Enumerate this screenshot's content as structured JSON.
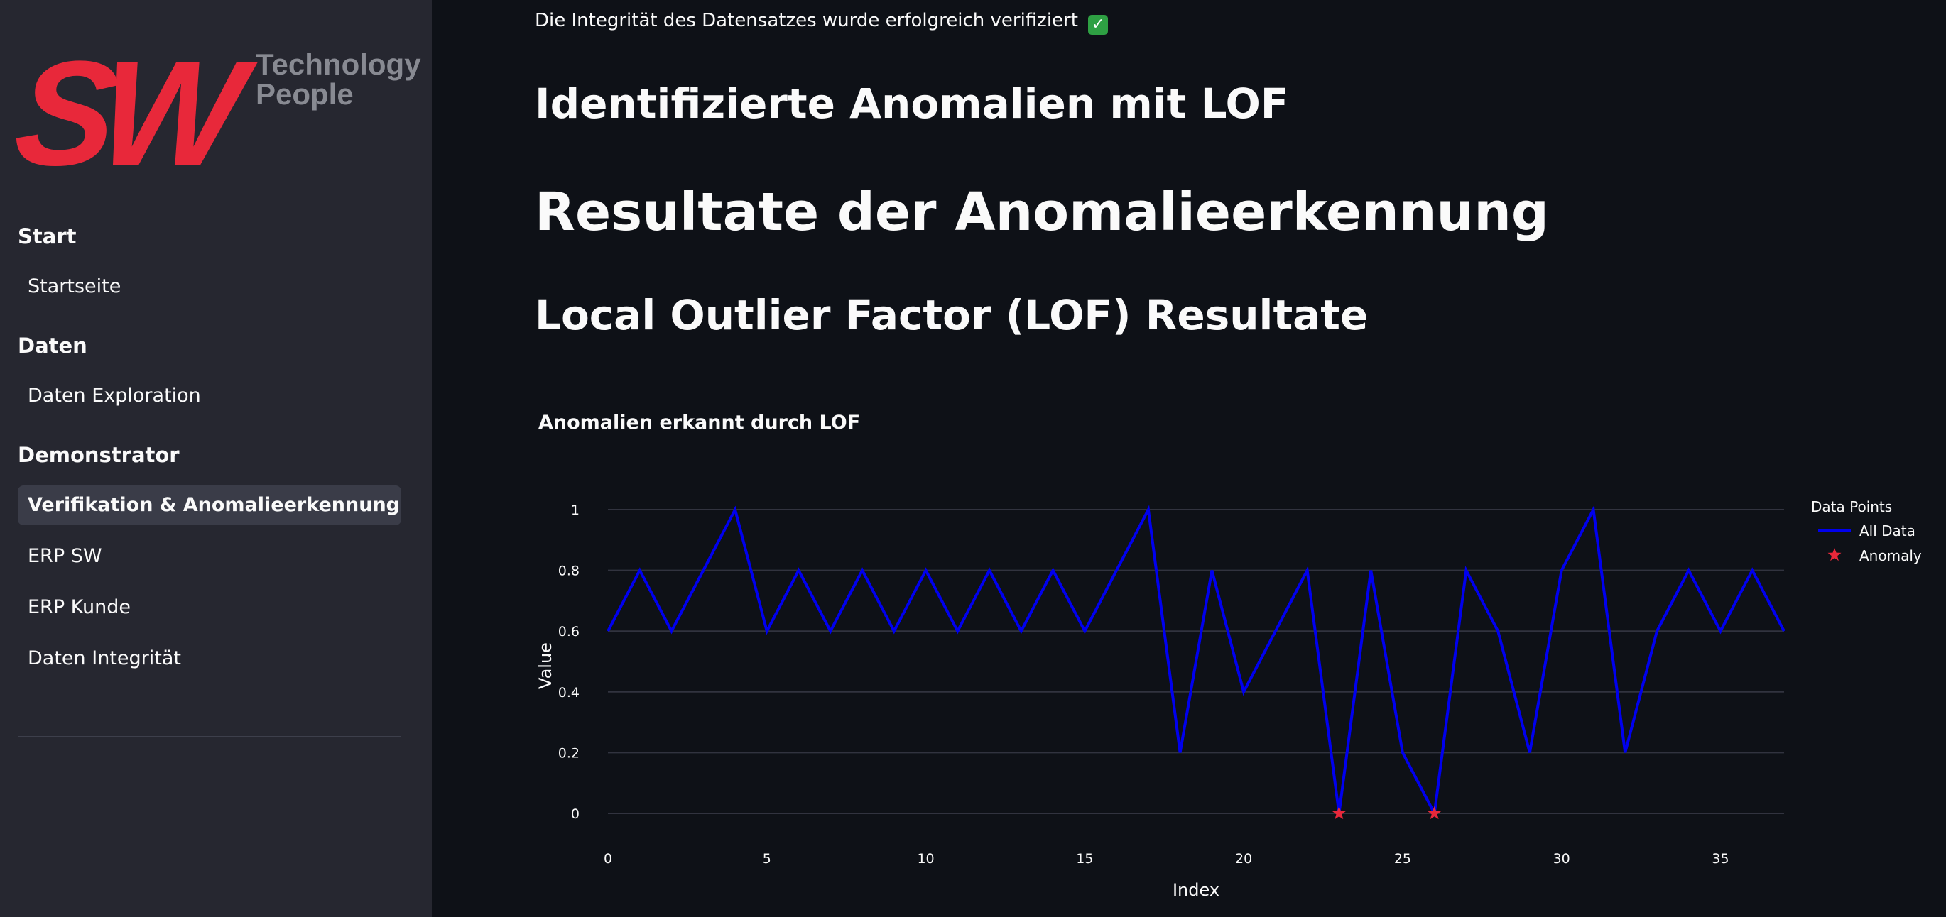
{
  "logo": {
    "brand": "SW",
    "tagline_line1": "Technology",
    "tagline_line2": "People"
  },
  "sidebar": {
    "sections": [
      {
        "header": "Start",
        "items": [
          {
            "label": "Startseite",
            "active": false
          }
        ]
      },
      {
        "header": "Daten",
        "items": [
          {
            "label": "Daten Exploration",
            "active": false
          }
        ]
      },
      {
        "header": "Demonstrator",
        "items": [
          {
            "label": "Verifikation & Anomalieerkennung",
            "active": true
          },
          {
            "label": "ERP SW",
            "active": false
          },
          {
            "label": "ERP Kunde",
            "active": false
          },
          {
            "label": "Daten Integrität",
            "active": false
          }
        ]
      }
    ]
  },
  "main": {
    "integrity_message": "Die Integrität des Datensatzes wurde erfolgreich verifiziert",
    "integrity_icon": "check-mark-button-icon",
    "heading_anomalies": "Identifizierte Anomalien mit LOF",
    "heading_results": "Resultate der Anomalieerkennung",
    "heading_lof": "Local Outlier Factor (LOF) Resultate"
  },
  "colors": {
    "background": "#0e1117",
    "sidebar": "#262730",
    "brand_red": "#e8283a",
    "line": "#0000ee",
    "anomaly": "#e8283a"
  },
  "chart_data": {
    "type": "line",
    "title": "Anomalien erkannt durch LOF",
    "xlabel": "Index",
    "ylabel": "Value",
    "xlim": [
      0,
      37
    ],
    "ylim": [
      0,
      1
    ],
    "xticks": [
      0,
      5,
      10,
      15,
      20,
      25,
      30,
      35
    ],
    "yticks": [
      0,
      0.2,
      0.4,
      0.6,
      0.8,
      1
    ],
    "ytick_labels": [
      "0",
      "0.2",
      "0.4",
      "0.6",
      "0.8",
      "1"
    ],
    "grid": true,
    "legend": {
      "title": "Data Points",
      "position": "right"
    },
    "series": [
      {
        "name": "All Data",
        "mode": "line",
        "x": [
          0,
          1,
          2,
          3,
          4,
          5,
          6,
          7,
          8,
          9,
          10,
          11,
          12,
          13,
          14,
          15,
          16,
          17,
          18,
          19,
          20,
          21,
          22,
          23,
          24,
          25,
          26,
          27,
          28,
          29,
          30,
          31,
          32,
          33,
          34,
          35,
          36,
          37
        ],
        "y": [
          0.6,
          0.8,
          0.6,
          0.8,
          1,
          0.6,
          0.8,
          0.6,
          0.8,
          0.6,
          0.8,
          0.6,
          0.8,
          0.6,
          0.8,
          0.6,
          0.8,
          1,
          0.2,
          0.8,
          0.4,
          0.6,
          0.8,
          0,
          0.8,
          0.2,
          0,
          0.8,
          0.6,
          0.2,
          0.8,
          1,
          0.2,
          0.6,
          0.8,
          0.6,
          0.8,
          0.6
        ]
      },
      {
        "name": "Anomaly",
        "mode": "markers",
        "marker": "star",
        "x": [
          23,
          26
        ],
        "y": [
          0,
          0
        ]
      }
    ]
  }
}
